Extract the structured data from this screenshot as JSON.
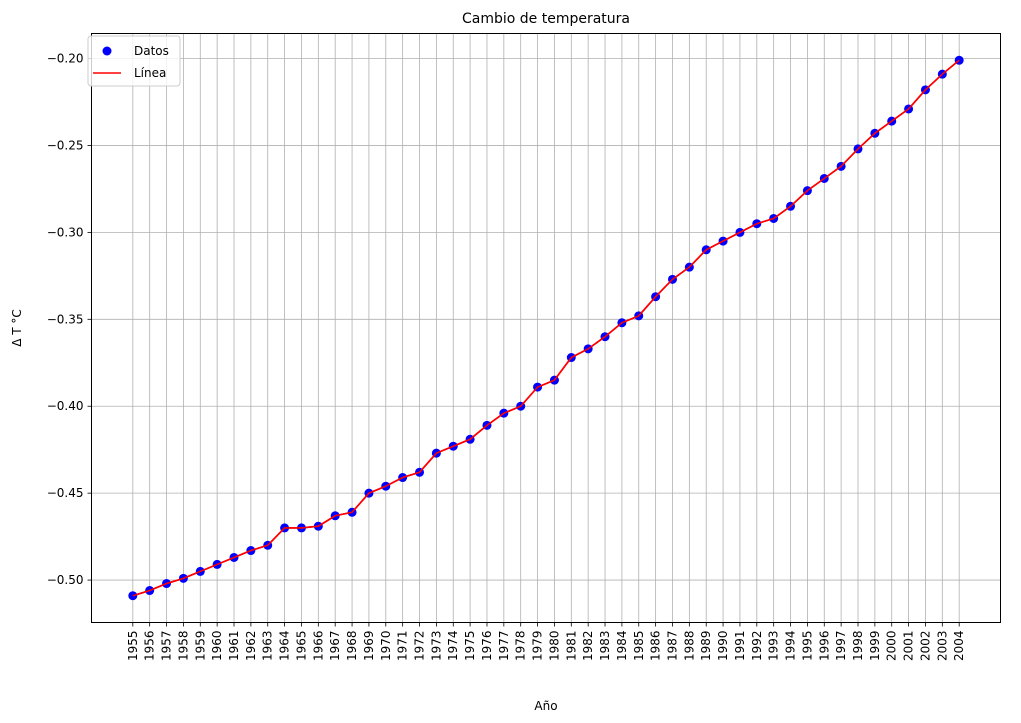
{
  "chart_data": {
    "type": "line",
    "title": "Cambio de temperatura",
    "xlabel": "Año",
    "ylabel": "Δ T °C",
    "x": [
      1955,
      1956,
      1957,
      1958,
      1959,
      1960,
      1961,
      1962,
      1963,
      1964,
      1965,
      1966,
      1967,
      1968,
      1969,
      1970,
      1971,
      1972,
      1973,
      1974,
      1975,
      1976,
      1977,
      1978,
      1979,
      1980,
      1981,
      1982,
      1983,
      1984,
      1985,
      1986,
      1987,
      1988,
      1989,
      1990,
      1991,
      1992,
      1993,
      1994,
      1995,
      1996,
      1997,
      1998,
      1999,
      2000,
      2001,
      2002,
      2003,
      2004
    ],
    "series": [
      {
        "name": "Datos",
        "kind": "scatter",
        "color": "#0000ff",
        "values": [
          -0.509,
          -0.506,
          -0.502,
          -0.499,
          -0.495,
          -0.491,
          -0.487,
          -0.483,
          -0.48,
          -0.47,
          -0.47,
          -0.469,
          -0.463,
          -0.461,
          -0.45,
          -0.446,
          -0.441,
          -0.438,
          -0.427,
          -0.423,
          -0.419,
          -0.411,
          -0.404,
          -0.4,
          -0.389,
          -0.385,
          -0.372,
          -0.367,
          -0.36,
          -0.352,
          -0.348,
          -0.337,
          -0.327,
          -0.32,
          -0.31,
          -0.305,
          -0.3,
          -0.295,
          -0.292,
          -0.285,
          -0.276,
          -0.269,
          -0.262,
          -0.252,
          -0.243,
          -0.236,
          -0.229,
          -0.218,
          -0.209,
          -0.201
        ]
      },
      {
        "name": "Línea",
        "kind": "line",
        "color": "#ff0000",
        "values": [
          -0.509,
          -0.506,
          -0.502,
          -0.499,
          -0.495,
          -0.491,
          -0.487,
          -0.483,
          -0.48,
          -0.47,
          -0.47,
          -0.469,
          -0.463,
          -0.461,
          -0.45,
          -0.446,
          -0.441,
          -0.438,
          -0.427,
          -0.423,
          -0.419,
          -0.411,
          -0.404,
          -0.4,
          -0.389,
          -0.385,
          -0.372,
          -0.367,
          -0.36,
          -0.352,
          -0.348,
          -0.337,
          -0.327,
          -0.32,
          -0.31,
          -0.305,
          -0.3,
          -0.295,
          -0.292,
          -0.285,
          -0.276,
          -0.269,
          -0.262,
          -0.252,
          -0.243,
          -0.236,
          -0.229,
          -0.218,
          -0.209,
          -0.201
        ]
      }
    ],
    "yticks": [
      -0.5,
      -0.45,
      -0.4,
      -0.35,
      -0.3,
      -0.25,
      -0.2
    ],
    "ytick_labels": [
      "−0.50",
      "−0.45",
      "−0.40",
      "−0.35",
      "−0.30",
      "−0.25",
      "−0.20"
    ],
    "ylim": [
      -0.5244,
      -0.1856
    ],
    "xlim": [
      1952.55,
      2006.45
    ],
    "grid": true,
    "legend": {
      "position": "top-left",
      "entries": [
        {
          "label": "Datos",
          "marker": "circle",
          "color": "#0000ff"
        },
        {
          "label": "Línea",
          "marker": "line",
          "color": "#ff0000"
        }
      ]
    },
    "colors": {
      "grid": "#b0b0b0",
      "axes": "#000000"
    }
  }
}
